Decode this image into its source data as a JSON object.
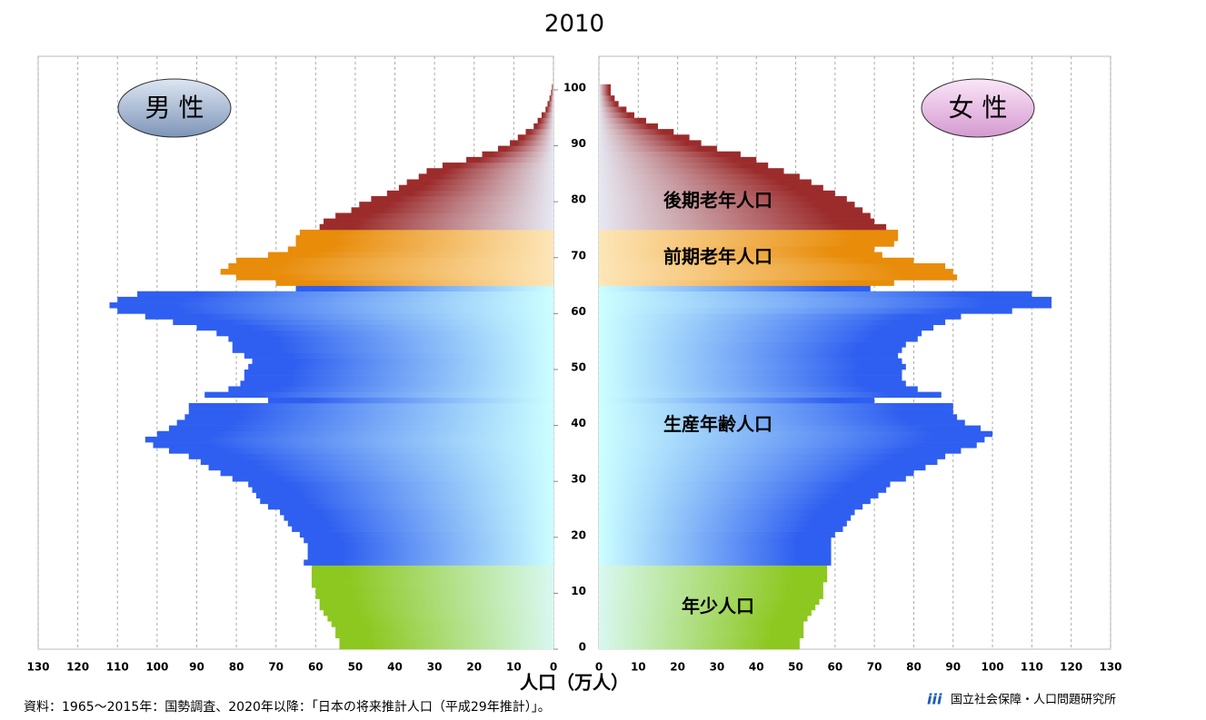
{
  "chart_data": {
    "type": "pyramid",
    "title": "2010",
    "left_label": "男 性",
    "right_label": "女 性",
    "xlabel": "人口（万人）",
    "source": "資料：1965～2015年：国勢調査、2020年以降：「日本の将来推計人口（平成29年推計）」。",
    "logo": "国立社会保障・人口問題研究所",
    "xlim": [
      0,
      130
    ],
    "xticks": [
      0,
      10,
      20,
      30,
      40,
      50,
      60,
      70,
      80,
      90,
      100,
      110,
      120,
      130
    ],
    "ylim": [
      0,
      106
    ],
    "yticks": [
      0,
      10,
      20,
      30,
      40,
      50,
      60,
      70,
      80,
      90,
      100
    ],
    "grid": true,
    "ages": [
      0,
      1,
      2,
      3,
      4,
      5,
      6,
      7,
      8,
      9,
      10,
      11,
      12,
      13,
      14,
      15,
      16,
      17,
      18,
      19,
      20,
      21,
      22,
      23,
      24,
      25,
      26,
      27,
      28,
      29,
      30,
      31,
      32,
      33,
      34,
      35,
      36,
      37,
      38,
      39,
      40,
      41,
      42,
      43,
      44,
      45,
      46,
      47,
      48,
      49,
      50,
      51,
      52,
      53,
      54,
      55,
      56,
      57,
      58,
      59,
      60,
      61,
      62,
      63,
      64,
      65,
      66,
      67,
      68,
      69,
      70,
      71,
      72,
      73,
      74,
      75,
      76,
      77,
      78,
      79,
      80,
      81,
      82,
      83,
      84,
      85,
      86,
      87,
      88,
      89,
      90,
      91,
      92,
      93,
      94,
      95,
      96,
      97,
      98,
      99,
      100
    ],
    "bands": [
      {
        "label": "年少人口",
        "last_age": 14,
        "color": "#8cc820",
        "light": "#d8f8f0"
      },
      {
        "label": "生産年齢人口",
        "last_age": 64,
        "color": "#2f5ff0",
        "light": "#ccffff"
      },
      {
        "label": "前期老年人口",
        "last_age": 74,
        "color": "#e88c0a",
        "light": "#fde6b8"
      },
      {
        "label": "後期老年人口",
        "last_age": 100,
        "color": "#9c2c2c",
        "light": "#e6e8f2"
      }
    ],
    "series": [
      {
        "name": "男 性",
        "side": "left",
        "values": [
          54,
          54,
          55,
          55,
          56,
          57,
          58,
          59,
          59,
          60,
          60,
          61,
          61,
          61,
          61,
          63,
          62,
          62,
          62,
          63,
          64,
          66,
          67,
          68,
          69,
          72,
          74,
          75,
          76,
          77,
          81,
          84,
          87,
          89,
          92,
          97,
          101,
          103,
          100,
          97,
          95,
          93,
          92,
          92,
          72,
          88,
          82,
          79,
          78,
          78,
          77,
          76,
          78,
          81,
          81,
          82,
          85,
          90,
          96,
          103,
          110,
          112,
          110,
          105,
          65,
          70,
          80,
          84,
          82,
          80,
          72,
          67,
          65,
          65,
          64,
          59,
          58,
          55,
          51,
          49,
          46,
          42,
          39,
          37,
          34,
          32,
          28,
          22,
          18,
          14,
          11,
          9,
          7,
          5,
          4,
          3,
          2,
          1.5,
          1,
          0.6,
          0.4
        ]
      },
      {
        "name": "女 性",
        "side": "right",
        "values": [
          51,
          51,
          52,
          52,
          52,
          53,
          54,
          55,
          56,
          57,
          57,
          57,
          58,
          58,
          58,
          59,
          59,
          59,
          59,
          59,
          60,
          62,
          63,
          64,
          65,
          67,
          69,
          71,
          73,
          74,
          78,
          80,
          83,
          86,
          88,
          92,
          96,
          98,
          100,
          97,
          93,
          91,
          90,
          90,
          70,
          87,
          81,
          78,
          77,
          77,
          78,
          77,
          76,
          77,
          78,
          81,
          82,
          85,
          88,
          92,
          105,
          115,
          115,
          110,
          69,
          75,
          91,
          90,
          88,
          80,
          72,
          70,
          75,
          76,
          76,
          73,
          70,
          69,
          67,
          65,
          63,
          60,
          57,
          54,
          51,
          47,
          43,
          40,
          36,
          30,
          26,
          23,
          19,
          15,
          12,
          9,
          7,
          5,
          4,
          3,
          3
        ]
      }
    ]
  }
}
